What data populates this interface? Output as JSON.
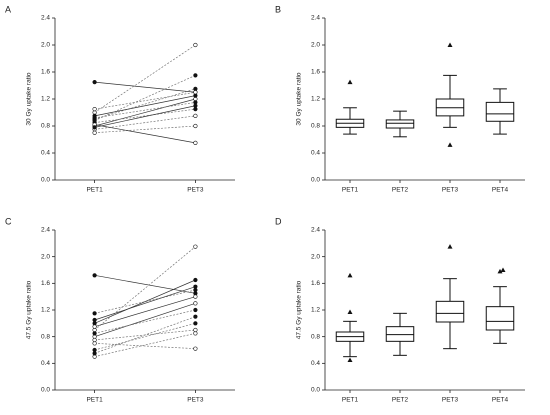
{
  "chart_data": [
    {
      "type": "paired",
      "panel": "A",
      "ylabel": "30 Gy uptake ratio",
      "categories": [
        "PET1",
        "PET3"
      ],
      "ylim": [
        0,
        2.4
      ],
      "yticks": [
        {
          "value": 0,
          "label": "0.0"
        },
        0.4,
        0.8,
        1.2,
        1.6,
        {
          "value": 2,
          "label": "2.0"
        },
        2.4
      ],
      "series": [
        {
          "values": [
            1.45,
            1.3
          ]
        },
        {
          "values": [
            1.0,
            2.0
          ]
        },
        {
          "values": [
            0.9,
            1.35
          ]
        },
        {
          "values": [
            0.8,
            1.2
          ]
        },
        {
          "values": [
            0.85,
            1.05
          ]
        },
        {
          "values": [
            0.75,
            0.95
          ]
        },
        {
          "values": [
            0.95,
            1.25
          ]
        },
        {
          "values": [
            0.7,
            0.8
          ]
        },
        {
          "values": [
            0.88,
            1.55
          ]
        },
        {
          "values": [
            0.82,
            0.55
          ]
        },
        {
          "values": [
            0.92,
            1.15
          ]
        },
        {
          "values": [
            1.05,
            1.3
          ]
        },
        {
          "values": [
            0.78,
            1.1
          ]
        }
      ]
    },
    {
      "type": "box",
      "panel": "B",
      "ylabel": "30 Gy uptake ratio",
      "categories": [
        "PET1",
        "PET2",
        "PET3",
        "PET4"
      ],
      "ylim": [
        0,
        2.4
      ],
      "yticks": [
        {
          "value": 0,
          "label": "0.0"
        },
        0.4,
        0.8,
        1.2,
        1.6,
        {
          "value": 2,
          "label": "2.0"
        },
        2.4
      ],
      "boxes": [
        {
          "low": 0.68,
          "q1": 0.78,
          "median": 0.84,
          "q3": 0.9,
          "high": 1.07,
          "outliers": [
            1.45
          ]
        },
        {
          "low": 0.64,
          "q1": 0.77,
          "median": 0.84,
          "q3": 0.89,
          "high": 1.02,
          "outliers": []
        },
        {
          "low": 0.78,
          "q1": 0.95,
          "median": 1.07,
          "q3": 1.2,
          "high": 1.55,
          "outliers": [
            2.0,
            0.52
          ]
        },
        {
          "low": 0.68,
          "q1": 0.87,
          "median": 0.98,
          "q3": 1.15,
          "high": 1.35,
          "outliers": []
        }
      ]
    },
    {
      "type": "paired",
      "panel": "C",
      "ylabel": "47.5 Gy uptake ratio",
      "categories": [
        "PET1",
        "PET3"
      ],
      "ylim": [
        0,
        2.4
      ],
      "yticks": [
        {
          "value": 0,
          "label": "0.0"
        },
        0.4,
        0.8,
        1.2,
        1.6,
        {
          "value": 2,
          "label": "2.0"
        },
        2.4
      ],
      "series": [
        {
          "values": [
            1.72,
            1.45
          ]
        },
        {
          "values": [
            0.9,
            2.15
          ]
        },
        {
          "values": [
            1.15,
            1.5
          ]
        },
        {
          "values": [
            0.8,
            1.3
          ]
        },
        {
          "values": [
            0.6,
            1.0
          ]
        },
        {
          "values": [
            0.5,
            0.85
          ]
        },
        {
          "values": [
            1.0,
            1.65
          ]
        },
        {
          "values": [
            0.7,
            0.62
          ]
        },
        {
          "values": [
            0.85,
            1.2
          ]
        },
        {
          "values": [
            0.95,
            1.4
          ]
        },
        {
          "values": [
            0.55,
            1.1
          ]
        },
        {
          "values": [
            0.75,
            0.9
          ]
        },
        {
          "values": [
            1.05,
            1.55
          ]
        }
      ]
    },
    {
      "type": "box",
      "panel": "D",
      "ylabel": "47.5 Gy uptake ratio",
      "categories": [
        "PET1",
        "PET2",
        "PET3",
        "PET4"
      ],
      "ylim": [
        0,
        2.4
      ],
      "yticks": [
        {
          "value": 0,
          "label": "0.0"
        },
        0.4,
        0.8,
        1.2,
        1.6,
        {
          "value": 2,
          "label": "2.0"
        },
        2.4
      ],
      "boxes": [
        {
          "low": 0.5,
          "q1": 0.73,
          "median": 0.8,
          "q3": 0.87,
          "high": 1.03,
          "outliers": [
            1.72,
            1.17,
            0.45
          ]
        },
        {
          "low": 0.52,
          "q1": 0.73,
          "median": 0.83,
          "q3": 0.95,
          "high": 1.15,
          "outliers": []
        },
        {
          "low": 0.62,
          "q1": 1.02,
          "median": 1.15,
          "q3": 1.33,
          "high": 1.67,
          "outliers": [
            2.15
          ]
        },
        {
          "low": 0.7,
          "q1": 0.9,
          "median": 1.03,
          "q3": 1.25,
          "high": 1.55,
          "outliers": [
            1.78,
            1.8
          ]
        }
      ]
    }
  ]
}
